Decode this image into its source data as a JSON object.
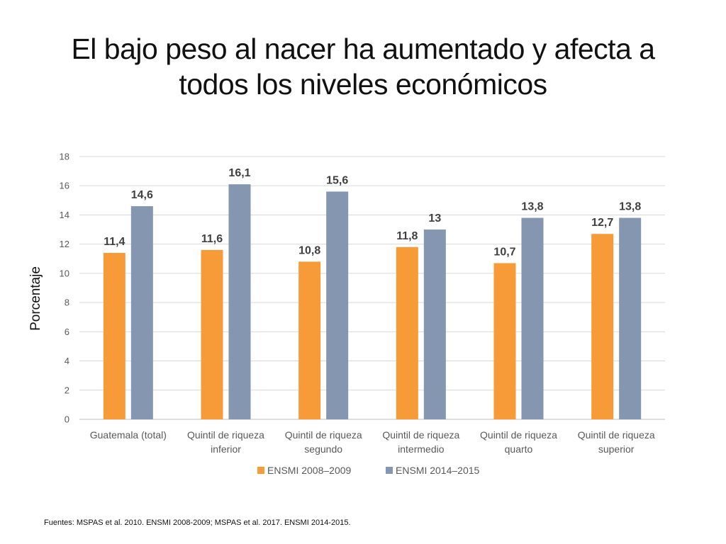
{
  "slide": {
    "title_line1": "El bajo peso al nacer ha aumentado y afecta a",
    "title_line2": "todos los niveles económicos",
    "footnote": "Fuentes: MSPAS et al. 2010. ENSMI 2008-2009; MSPAS et al. 2017. ENSMI 2014-2015."
  },
  "chart_data": {
    "type": "bar",
    "title": "",
    "xlabel": "",
    "ylabel": "Porcentaje",
    "ylim": [
      0,
      18
    ],
    "yticks": [
      0,
      2,
      4,
      6,
      8,
      10,
      12,
      14,
      16,
      18
    ],
    "grid": true,
    "legend_position": "bottom",
    "categories": [
      [
        "Guatemala (total)"
      ],
      [
        "Quintil de riqueza",
        "inferior"
      ],
      [
        "Quintil de riqueza",
        "segundo"
      ],
      [
        "Quintil de riqueza",
        "intermedio"
      ],
      [
        "Quintil de riqueza",
        "quarto"
      ],
      [
        "Quintil de riqueza",
        "superior"
      ]
    ],
    "series": [
      {
        "name": "ENSMI 2008–2009",
        "color": "#F79B38",
        "values": [
          11.4,
          11.6,
          10.8,
          11.8,
          10.7,
          12.7
        ],
        "labels": [
          "11,4",
          "11,6",
          "10,8",
          "11,8",
          "10,7",
          "12,7"
        ]
      },
      {
        "name": "ENSMI 2014–2015",
        "color": "#8496B0",
        "values": [
          14.6,
          16.1,
          15.6,
          13,
          13.8,
          13.8
        ],
        "labels": [
          "14,6",
          "16,1",
          "15,6",
          "13",
          "13,8",
          "13,8"
        ]
      }
    ]
  }
}
